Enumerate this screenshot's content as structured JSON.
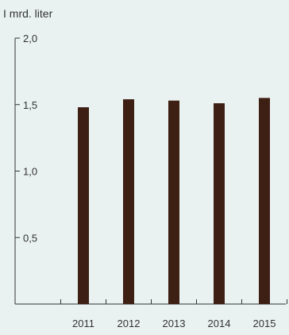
{
  "chart_data": {
    "type": "bar",
    "ylabel": "I mrd. liter",
    "categories": [
      "2011",
      "2012",
      "2013",
      "2014",
      "2015"
    ],
    "values": [
      1.48,
      1.54,
      1.53,
      1.51,
      1.55
    ],
    "ylim": [
      0,
      2.0
    ],
    "yticks": [
      "0,5",
      "1,0",
      "1,5",
      "2,0"
    ],
    "grid": false,
    "legend": "none",
    "bar_color": "#3d1f14",
    "axis_color": "#333333",
    "background": "#eaf2f1"
  }
}
